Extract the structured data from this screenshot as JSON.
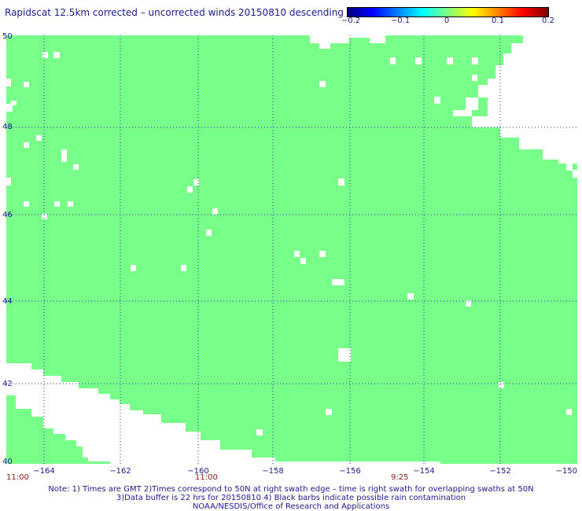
{
  "title": "Rapidscat 12.5km corrected – uncorrected winds 20150810 descending",
  "colorbar": {
    "ticks": [
      "−0.2",
      "−0.1",
      "0",
      "0.1",
      "0.2"
    ],
    "colors": [
      "#00007f",
      "#0000ff",
      "#00ffff",
      "#7fff7f",
      "#ffff00",
      "#ff0000",
      "#7f0000"
    ]
  },
  "map": {
    "fill_color": "#77ff8a",
    "grid_color": "#2b2b9a",
    "lon_range": [
      -165,
      -150
    ],
    "lat_range": [
      40,
      50
    ],
    "lat_labels": [
      "50",
      "48",
      "46",
      "44",
      "42",
      "40"
    ],
    "lon_labels": [
      "−164",
      "−162",
      "−160",
      "−158",
      "−156",
      "−154",
      "−152",
      "−150"
    ],
    "time_labels": [
      "11:00",
      "11:00",
      "9:25"
    ],
    "time_label_color": "#8b1a1a"
  },
  "notes": [
    "Note: 1) Times are GMT 2)Times correspond to 50N at right swath edge – time is right swath for overlapping swaths at 50N",
    "3)Data buffer is 22 hrs for 20150810 4) Black barbs indicate possible rain contamination",
    "NOAA/NESDIS/Office of Research and Applications"
  ]
}
